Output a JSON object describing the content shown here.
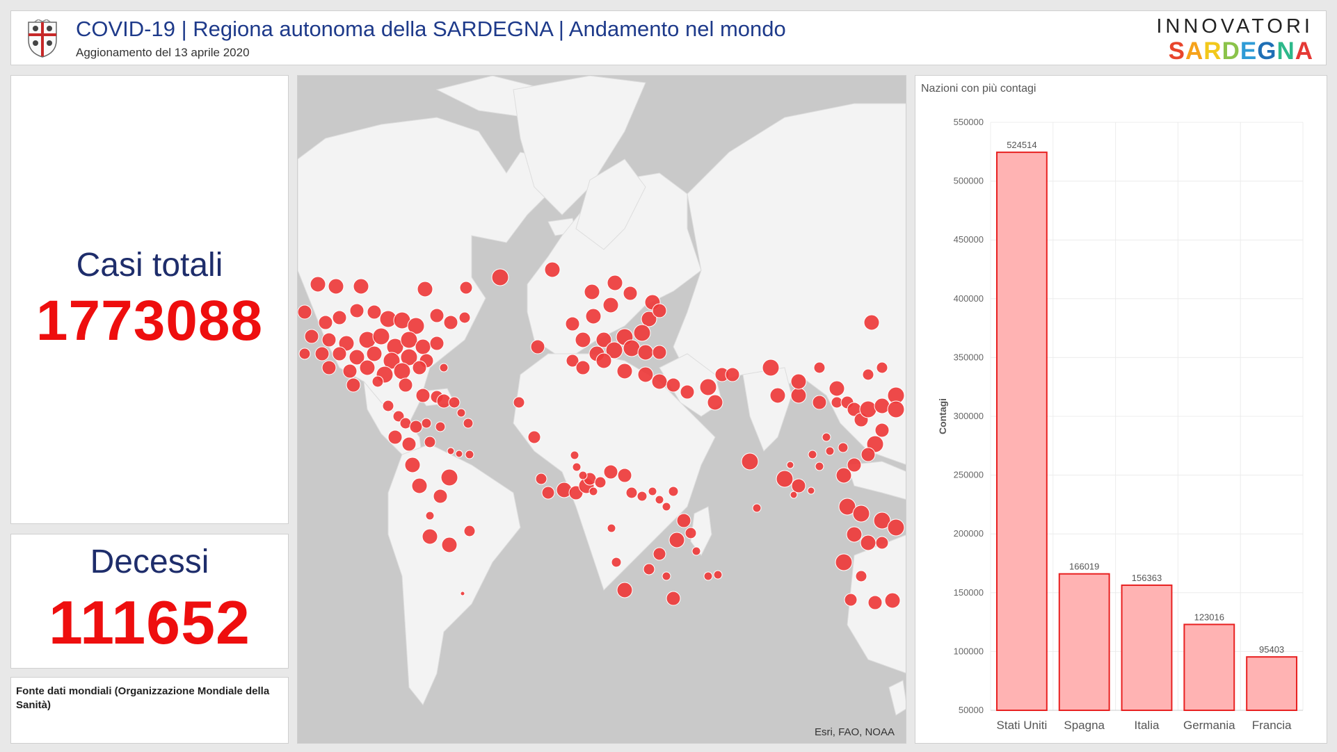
{
  "header": {
    "title": "COVID-19 | Regiona autonoma della SARDEGNA | Andamento nel mondo",
    "subtitle": "Aggionamento del 13 aprile 2020",
    "brand_top": "INNOVATORI",
    "brand_bottom_letters": [
      "S",
      "A",
      "R",
      "D",
      "E",
      "G",
      "N",
      "A"
    ],
    "brand_colors": [
      "#e8452c",
      "#f6a21a",
      "#f2c81b",
      "#8bc34a",
      "#2e9bd6",
      "#1f6fb5",
      "#2db88a",
      "#e53935"
    ],
    "emblem_icon": "sardinia-coat-of-arms-icon"
  },
  "kpis": {
    "cases_label": "Casi totali",
    "cases_value": "1773088",
    "deaths_label": "Decessi",
    "deaths_value": "111652"
  },
  "source": {
    "text": "Fonte dati mondiali (Organizzazione Mondiale della Sanità)"
  },
  "map": {
    "attribution": "Esri, FAO, NOAA",
    "marker_color": "#ee3b3b",
    "water_color": "#c9c9c9",
    "land_color": "#f3f3f3"
  },
  "chart_data": {
    "type": "bar",
    "title": "Nazioni con più contagi",
    "ylabel": "Contagi",
    "xlabel": "",
    "categories": [
      "Stati Uniti",
      "Spagna",
      "Italia",
      "Germania",
      "Francia"
    ],
    "values": [
      524514,
      166019,
      156363,
      123016,
      95403
    ],
    "ylim": [
      50000,
      550000
    ],
    "yticks": [
      50000,
      100000,
      150000,
      200000,
      250000,
      300000,
      350000,
      400000,
      450000,
      500000,
      550000
    ],
    "grid": true,
    "bar_fill": "#ffb3b3",
    "bar_stroke": "#e82020"
  }
}
